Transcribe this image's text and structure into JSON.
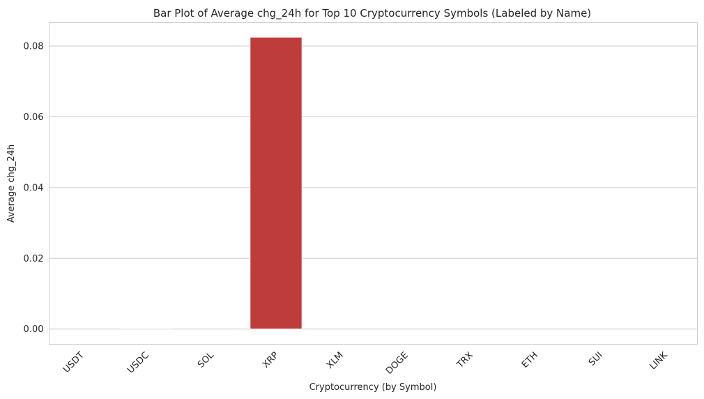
{
  "chart_data": {
    "type": "bar",
    "title": "Bar Plot of Average chg_24h for Top 10 Cryptocurrency Symbols (Labeled by Name)",
    "xlabel": "Cryptocurrency (by Symbol)",
    "ylabel": "Average chg_24h",
    "categories": [
      "USDT",
      "USDC",
      "SOL",
      "XRP",
      "XLM",
      "DOGE",
      "TRX",
      "ETH",
      "SUI",
      "LINK"
    ],
    "values": [
      0.0,
      0.0002,
      0.0,
      0.0825,
      0.0,
      0.0,
      0.0,
      0.0,
      0.0,
      0.0
    ],
    "colors": [
      "#ffffff",
      "#fefcfc",
      "#ffffff",
      "#bf3c3c",
      "#ffffff",
      "#ffffff",
      "#ffffff",
      "#ffffff",
      "#ffffff",
      "#ffffff"
    ],
    "ylim": [
      -0.0043,
      0.0866
    ],
    "yticks": [
      0.0,
      0.02,
      0.04,
      0.06,
      0.08
    ],
    "ytick_labels": [
      "0.00",
      "0.02",
      "0.04",
      "0.06",
      "0.08"
    ],
    "grid": "horizontal",
    "legend": "none"
  }
}
